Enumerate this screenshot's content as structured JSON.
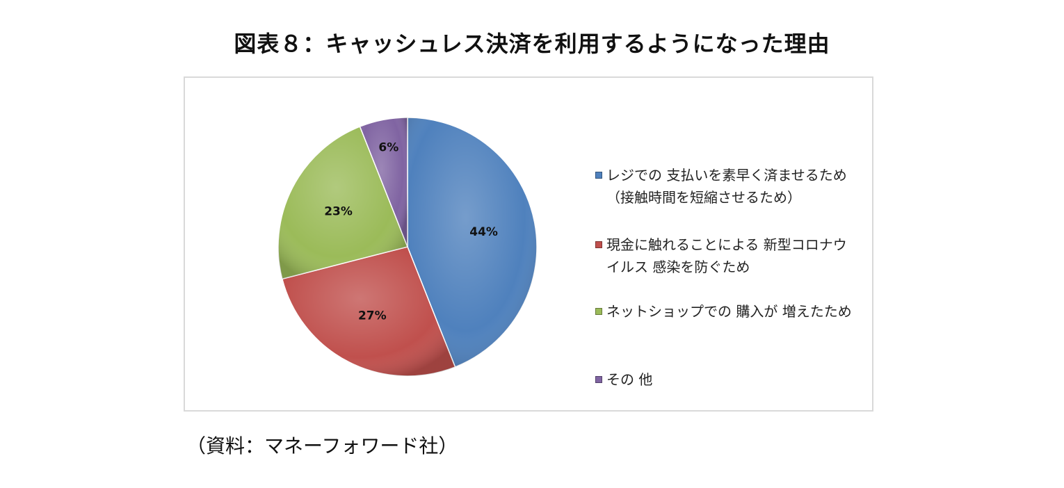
{
  "page": {
    "title": "図表８：キャッシュレス決済を利用するようになった理由",
    "source": "（資料：マネーフォワード社）"
  },
  "chart_data": {
    "type": "pie",
    "title": "",
    "categories": [
      "レジでの 支払いを素早く済ませるため（接触時間を短縮させるため）",
      "現金に触れることによる 新型コロナウイルス 感染を防ぐため",
      "ネットショップでの 購入が 増えたため",
      "その 他"
    ],
    "legend_lines": [
      [
        "レジでの 支払いを素早く済ませるため",
        "（接触時間を短縮させるため）"
      ],
      [
        "現金に触れることによる 新型コロナウ",
        "イルス 感染を防ぐため"
      ],
      [
        "ネットショップでの 購入が 増えたため"
      ],
      [
        "その 他"
      ]
    ],
    "values": [
      44,
      27,
      23,
      6
    ],
    "labels": [
      "44%",
      "27%",
      "23%",
      "6%"
    ],
    "colors": [
      "#4f81bd",
      "#c0504d",
      "#9bbb59",
      "#8064a2"
    ],
    "legend_position": "right",
    "start_angle": "top",
    "direction": "clockwise"
  }
}
